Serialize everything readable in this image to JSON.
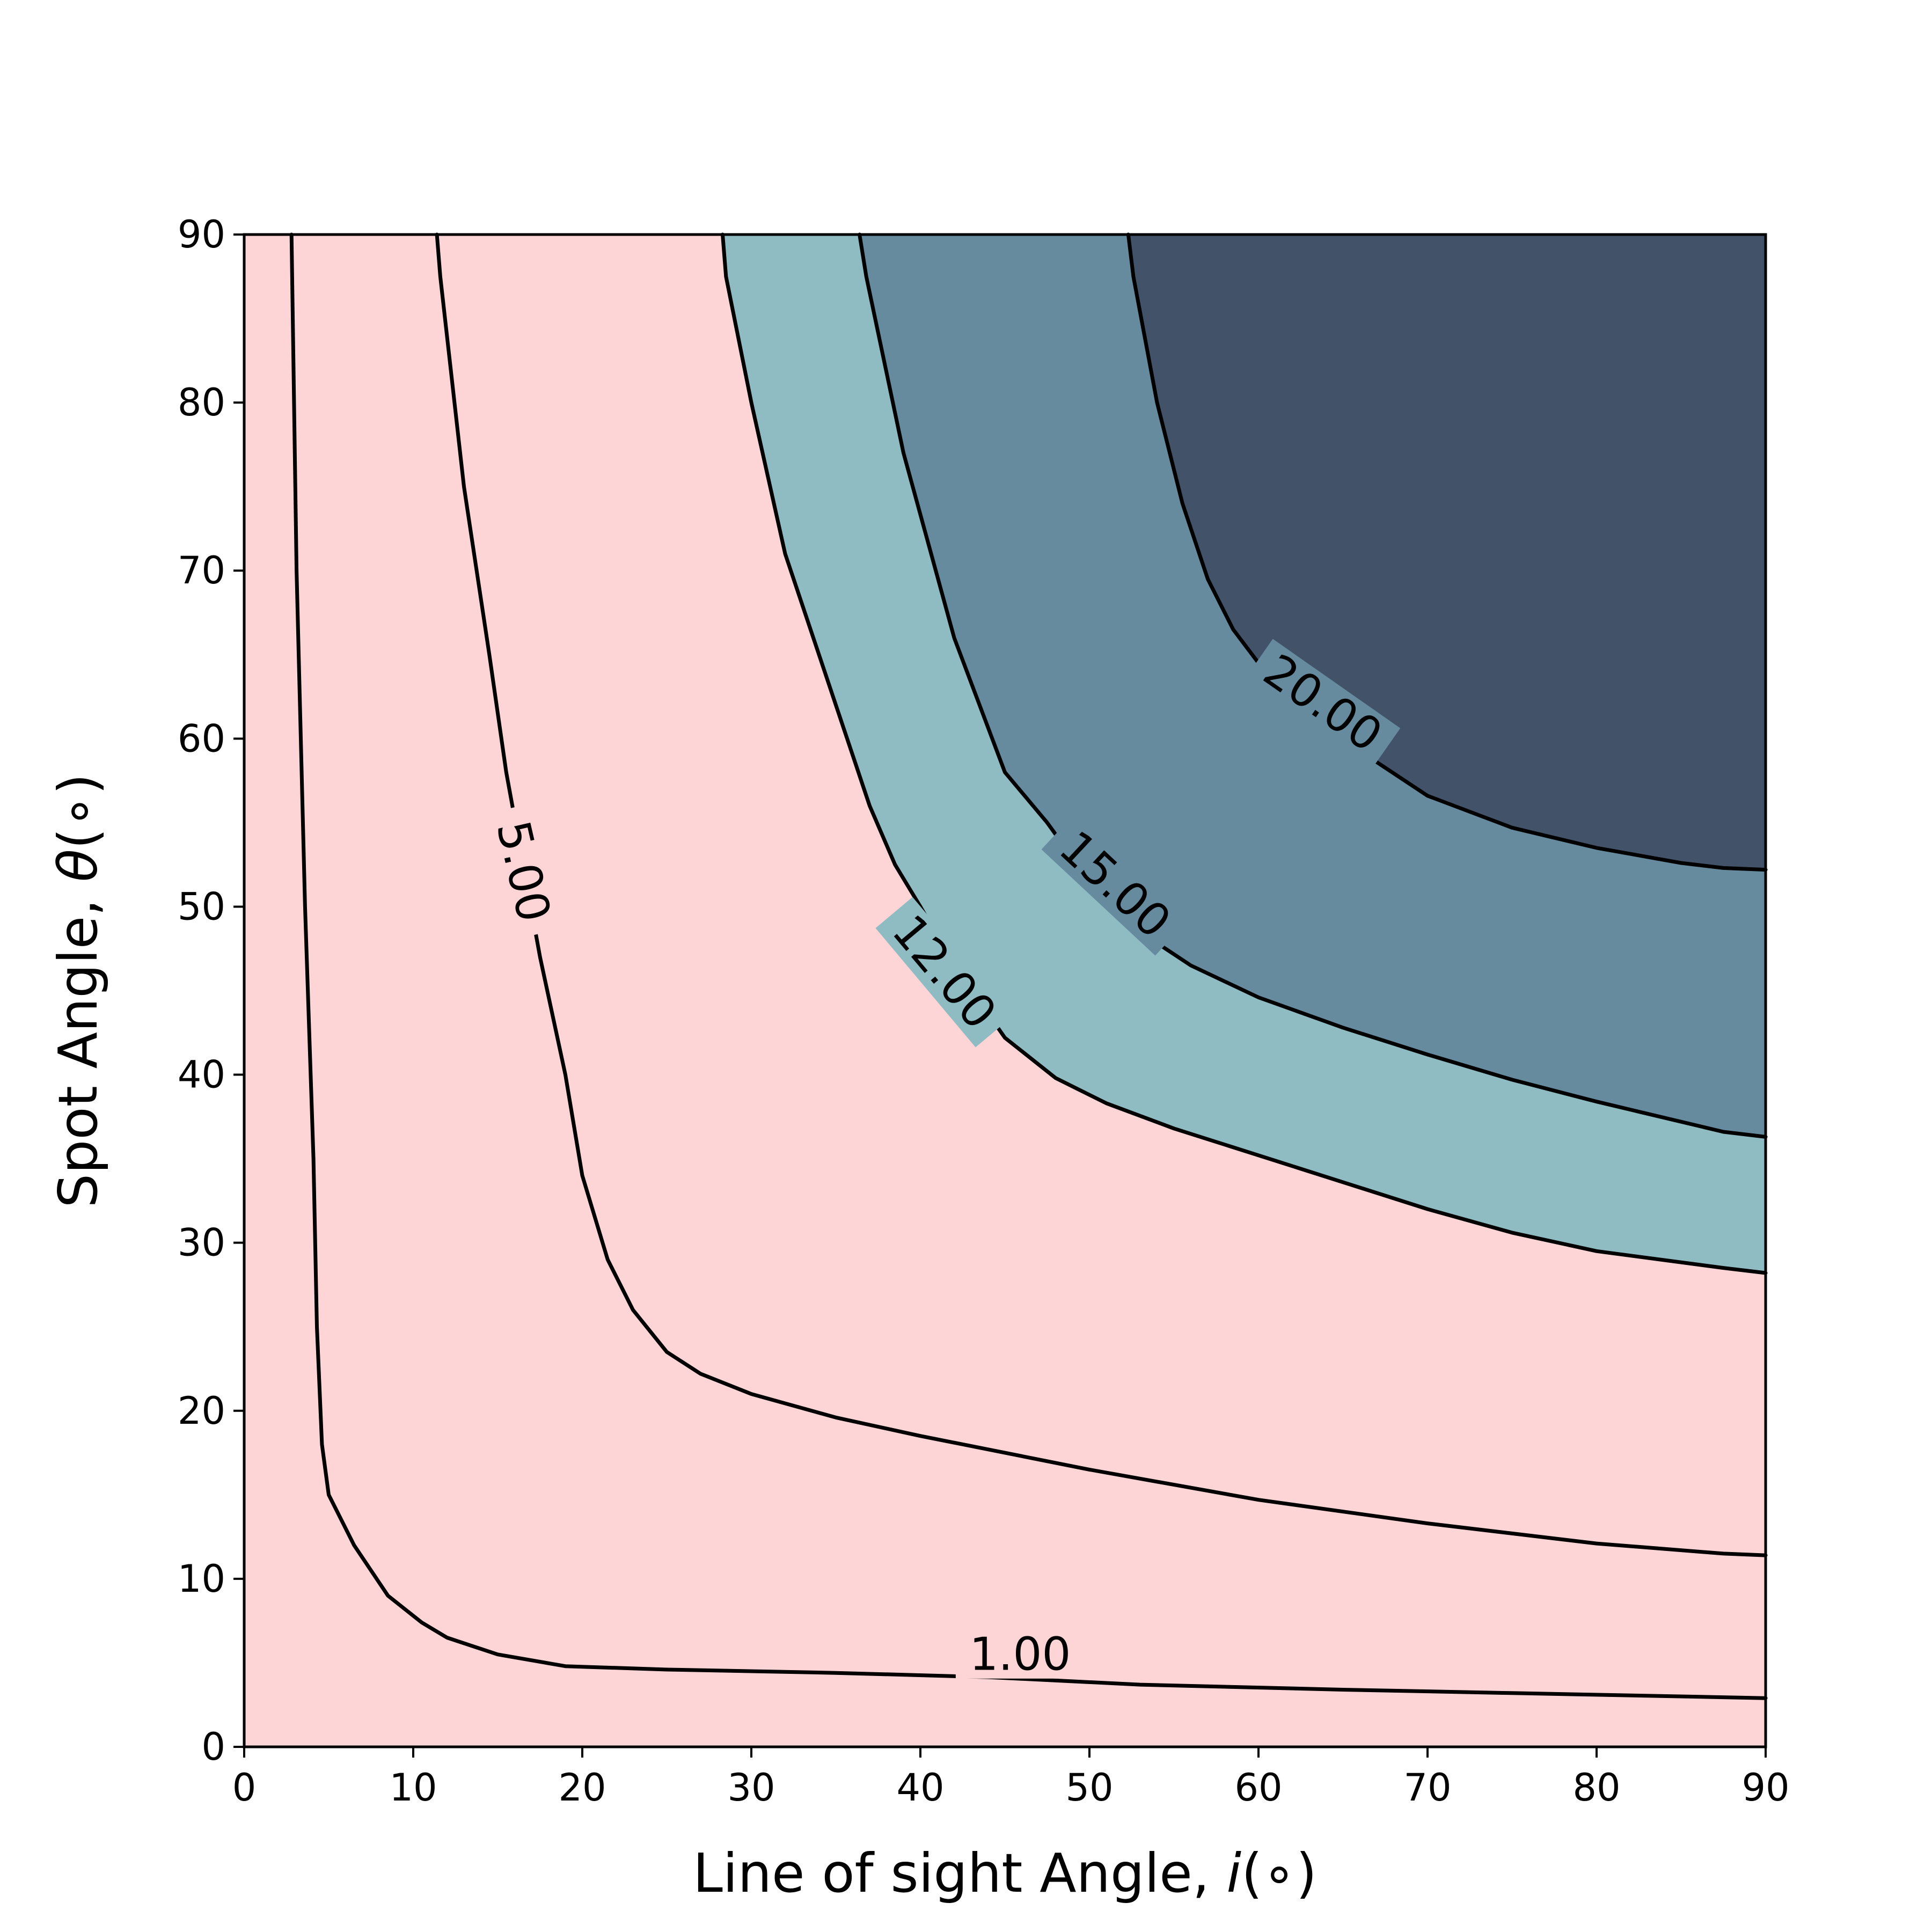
{
  "chart_data": {
    "type": "contour",
    "title": "",
    "xlabel": "Line of sight Angle, ",
    "xlabel_symbol": "i",
    "xlabel_unit": "(∘)",
    "ylabel": "Spot Angle, ",
    "ylabel_symbol": "θ",
    "ylabel_unit": "(∘)",
    "xlim": [
      0,
      90
    ],
    "ylim": [
      0,
      90
    ],
    "xticks": [
      0,
      10,
      20,
      30,
      40,
      50,
      60,
      70,
      80,
      90
    ],
    "yticks": [
      0,
      10,
      20,
      30,
      40,
      50,
      60,
      70,
      80,
      90
    ],
    "xtick_labels": [
      "0",
      "10",
      "20",
      "30",
      "40",
      "50",
      "60",
      "70",
      "80",
      "90"
    ],
    "ytick_labels": [
      "0",
      "10",
      "20",
      "30",
      "40",
      "50",
      "60",
      "70",
      "80",
      "90"
    ],
    "fill_colors": {
      "below_12": "#fdd5d6",
      "12_to_15": "#8fbcc2",
      "15_to_20": "#668b9e",
      "above_20": "#425369"
    },
    "contours": [
      {
        "level": 1.0,
        "label": "1.00",
        "label_at": [
          45.9,
          5.5
        ],
        "label_rotation": 0,
        "points": [
          [
            2.8,
            90
          ],
          [
            3.1,
            70
          ],
          [
            3.6,
            50
          ],
          [
            4.1,
            35
          ],
          [
            4.3,
            25
          ],
          [
            4.6,
            18
          ],
          [
            5.0,
            15
          ],
          [
            6.5,
            12
          ],
          [
            8.5,
            9
          ],
          [
            10.5,
            7.4
          ],
          [
            12,
            6.5
          ],
          [
            15,
            5.5
          ],
          [
            19,
            4.8
          ],
          [
            25,
            4.6
          ],
          [
            35,
            4.4
          ],
          [
            44,
            4.15
          ],
          [
            53,
            3.7
          ],
          [
            65,
            3.4
          ],
          [
            75,
            3.2
          ],
          [
            90,
            2.9
          ]
        ]
      },
      {
        "level": 5.0,
        "label": "5.00",
        "label_at": [
          16.5,
          52.1
        ],
        "label_rotation": 77,
        "points": [
          [
            11.4,
            90
          ],
          [
            11.6,
            87.5
          ],
          [
            13,
            75
          ],
          [
            14.5,
            65
          ],
          [
            15.5,
            58
          ],
          [
            17.5,
            47
          ],
          [
            19,
            40
          ],
          [
            20,
            34
          ],
          [
            21.5,
            29
          ],
          [
            23,
            26
          ],
          [
            25,
            23.5
          ],
          [
            27,
            22.2
          ],
          [
            30,
            21
          ],
          [
            35,
            19.6
          ],
          [
            40,
            18.5
          ],
          [
            50,
            16.5
          ],
          [
            60,
            14.7
          ],
          [
            70,
            13.3
          ],
          [
            80,
            12.1
          ],
          [
            87.5,
            11.5
          ],
          [
            90,
            11.4
          ]
        ]
      },
      {
        "level": 12.0,
        "label": "12.00",
        "label_at": [
          41.4,
          46.1
        ],
        "label_rotation": 50,
        "points": [
          [
            28.3,
            90
          ],
          [
            28.5,
            87.5
          ],
          [
            30,
            80
          ],
          [
            32,
            71
          ],
          [
            35,
            62
          ],
          [
            37,
            56
          ],
          [
            38.5,
            52.5
          ],
          [
            40,
            50
          ],
          [
            42,
            46.5
          ],
          [
            45,
            42.2
          ],
          [
            48,
            39.8
          ],
          [
            51,
            38.3
          ],
          [
            55,
            36.8
          ],
          [
            60,
            35.2
          ],
          [
            65,
            33.6
          ],
          [
            70,
            32.0
          ],
          [
            75,
            30.6
          ],
          [
            80,
            29.5
          ],
          [
            87.5,
            28.5
          ],
          [
            90,
            28.2
          ]
        ]
      },
      {
        "level": 15.0,
        "label": "15.00",
        "label_at": [
          51.5,
          51.3
        ],
        "label_rotation": 43,
        "points": [
          [
            36.4,
            90
          ],
          [
            36.8,
            87.5
          ],
          [
            39,
            77
          ],
          [
            42,
            66
          ],
          [
            45,
            58
          ],
          [
            47.5,
            55
          ],
          [
            50,
            51.5
          ],
          [
            53,
            48.5
          ],
          [
            56,
            46.5
          ],
          [
            60,
            44.6
          ],
          [
            65,
            42.8
          ],
          [
            70,
            41.2
          ],
          [
            75,
            39.7
          ],
          [
            80,
            38.4
          ],
          [
            87.5,
            36.6
          ],
          [
            90,
            36.3
          ]
        ]
      },
      {
        "level": 20.0,
        "label": "20.00",
        "label_at": [
          63.8,
          62.1
        ],
        "label_rotation": 35,
        "points": [
          [
            52.3,
            90
          ],
          [
            52.6,
            87.5
          ],
          [
            54,
            80
          ],
          [
            55.5,
            74
          ],
          [
            57,
            69.5
          ],
          [
            58.5,
            66.5
          ],
          [
            60,
            64.5
          ],
          [
            62,
            62.3
          ],
          [
            65,
            60
          ],
          [
            67,
            58.6
          ],
          [
            70,
            56.6
          ],
          [
            75,
            54.7
          ],
          [
            80,
            53.5
          ],
          [
            85,
            52.6
          ],
          [
            87.5,
            52.3
          ],
          [
            90,
            52.2
          ]
        ]
      }
    ],
    "grid": false,
    "legend": "none"
  }
}
